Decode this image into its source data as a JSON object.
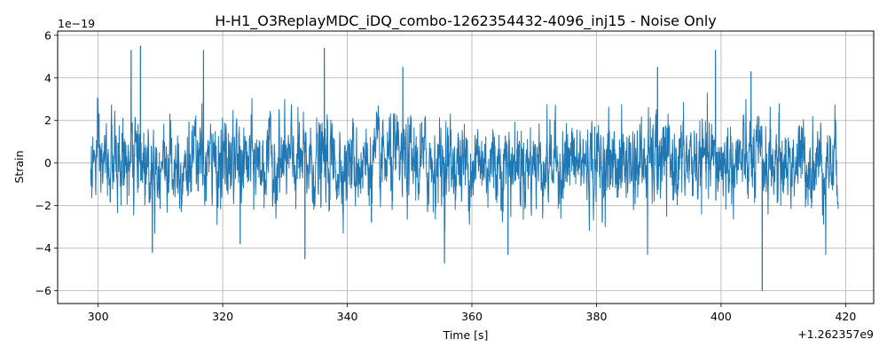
{
  "chart_data": {
    "type": "line",
    "title": "H-H1_O3ReplayMDC_iDQ_combo-1262354432-4096_inj15 - Noise Only",
    "xlabel": "Time [s]",
    "ylabel": "Strain",
    "x_offset_label": "+1.262357e9",
    "y_scale_label": "1e−19",
    "xlim": [
      293.5,
      424.5
    ],
    "ylim": [
      -6.6,
      6.2
    ],
    "x_ticks": [
      300,
      320,
      340,
      360,
      380,
      400,
      420
    ],
    "y_ticks": [
      -6,
      -4,
      -2,
      0,
      2,
      4,
      6
    ],
    "x_tick_labels": [
      "300",
      "320",
      "340",
      "360",
      "380",
      "400",
      "420"
    ],
    "y_tick_labels": [
      "−6",
      "−4",
      "−2",
      "0",
      "2",
      "4",
      "6"
    ],
    "grid": true,
    "series": [
      {
        "color": "#1f77b4",
        "x_start": 298.8,
        "x_end": 418.8,
        "typical_envelope": 2.0,
        "notable_extremes": [
          {
            "x": 305.3,
            "y": 5.3
          },
          {
            "x": 306.8,
            "y": 5.5
          },
          {
            "x": 308.7,
            "y": -4.2
          },
          {
            "x": 316.9,
            "y": 5.3
          },
          {
            "x": 322.8,
            "y": -3.8
          },
          {
            "x": 333.2,
            "y": -4.5
          },
          {
            "x": 336.3,
            "y": 5.4
          },
          {
            "x": 348.9,
            "y": 4.5
          },
          {
            "x": 355.6,
            "y": -4.7
          },
          {
            "x": 365.8,
            "y": -4.3
          },
          {
            "x": 388.2,
            "y": -4.3
          },
          {
            "x": 389.8,
            "y": 4.5
          },
          {
            "x": 399.1,
            "y": 5.3
          },
          {
            "x": 404.8,
            "y": 4.3
          },
          {
            "x": 406.6,
            "y": -6.0
          },
          {
            "x": 416.8,
            "y": -4.3
          }
        ]
      }
    ]
  }
}
